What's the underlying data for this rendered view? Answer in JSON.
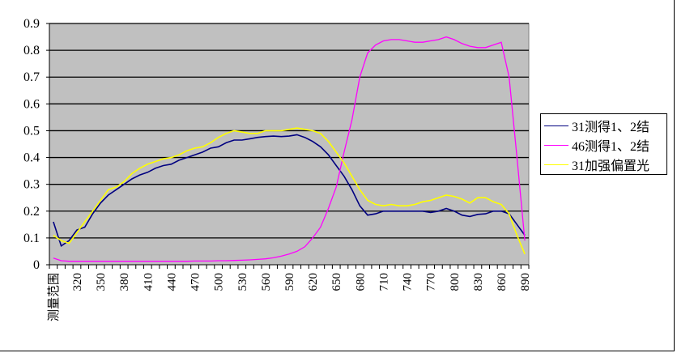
{
  "chart_data": {
    "type": "line",
    "title": "",
    "xlabel": "",
    "ylabel": "",
    "ylim": [
      0,
      0.9
    ],
    "yticks": [
      "0",
      "0.1",
      "0.2",
      "0.3",
      "0.4",
      "0.5",
      "0.6",
      "0.7",
      "0.8",
      "0.9"
    ],
    "grid": true,
    "legend_position": "right",
    "plot_background": "#c0c0c0",
    "categories": [
      "测量范围",
      "300",
      "310",
      "320",
      "330",
      "340",
      "350",
      "360",
      "370",
      "380",
      "390",
      "400",
      "410",
      "420",
      "430",
      "440",
      "450",
      "460",
      "470",
      "480",
      "490",
      "500",
      "510",
      "520",
      "530",
      "540",
      "550",
      "560",
      "570",
      "580",
      "590",
      "600",
      "610",
      "620",
      "630",
      "640",
      "650",
      "660",
      "670",
      "680",
      "690",
      "700",
      "710",
      "720",
      "730",
      "740",
      "750",
      "760",
      "770",
      "780",
      "790",
      "800",
      "810",
      "820",
      "830",
      "840",
      "850",
      "860",
      "870",
      "880",
      "890"
    ],
    "xtick_labels_shown": [
      "测量范围",
      "320",
      "350",
      "380",
      "410",
      "440",
      "470",
      "500",
      "530",
      "560",
      "590",
      "620",
      "650",
      "680",
      "710",
      "740",
      "770",
      "800",
      "830",
      "860",
      "890"
    ],
    "series": [
      {
        "name": "31测得1、2结",
        "color": "#000080",
        "values": [
          0.16,
          0.07,
          0.09,
          0.13,
          0.14,
          0.19,
          0.23,
          0.26,
          0.28,
          0.3,
          0.32,
          0.335,
          0.345,
          0.36,
          0.37,
          0.375,
          0.39,
          0.4,
          0.41,
          0.42,
          0.435,
          0.44,
          0.455,
          0.465,
          0.465,
          0.47,
          0.475,
          0.478,
          0.48,
          0.478,
          0.48,
          0.485,
          0.475,
          0.46,
          0.44,
          0.41,
          0.37,
          0.33,
          0.28,
          0.22,
          0.185,
          0.19,
          0.2,
          0.2,
          0.2,
          0.2,
          0.2,
          0.2,
          0.195,
          0.2,
          0.21,
          0.2,
          0.185,
          0.18,
          0.188,
          0.19,
          0.2,
          0.2,
          0.19,
          0.15,
          0.11
        ]
      },
      {
        "name": "46测得1、2结",
        "color": "#ff00ff",
        "values": [
          0.025,
          0.015,
          0.013,
          0.013,
          0.013,
          0.013,
          0.013,
          0.013,
          0.013,
          0.013,
          0.013,
          0.013,
          0.013,
          0.013,
          0.013,
          0.013,
          0.013,
          0.013,
          0.014,
          0.014,
          0.014,
          0.015,
          0.015,
          0.016,
          0.017,
          0.018,
          0.02,
          0.022,
          0.026,
          0.032,
          0.04,
          0.05,
          0.067,
          0.1,
          0.14,
          0.21,
          0.29,
          0.42,
          0.54,
          0.7,
          0.79,
          0.82,
          0.835,
          0.84,
          0.84,
          0.835,
          0.83,
          0.83,
          0.835,
          0.84,
          0.85,
          0.84,
          0.825,
          0.815,
          0.81,
          0.81,
          0.82,
          0.83,
          0.7,
          0.4,
          0.09
        ]
      },
      {
        "name": "31加强偏置光",
        "color": "#ffff00",
        "values": [
          0.11,
          0.09,
          0.08,
          0.12,
          0.16,
          0.2,
          0.24,
          0.28,
          0.29,
          0.31,
          0.34,
          0.36,
          0.375,
          0.385,
          0.395,
          0.4,
          0.41,
          0.425,
          0.435,
          0.44,
          0.455,
          0.475,
          0.49,
          0.5,
          0.495,
          0.49,
          0.49,
          0.5,
          0.5,
          0.5,
          0.505,
          0.51,
          0.505,
          0.5,
          0.49,
          0.46,
          0.42,
          0.38,
          0.33,
          0.28,
          0.24,
          0.225,
          0.22,
          0.225,
          0.22,
          0.22,
          0.225,
          0.235,
          0.24,
          0.25,
          0.26,
          0.255,
          0.245,
          0.23,
          0.25,
          0.25,
          0.235,
          0.225,
          0.19,
          0.11,
          0.04
        ]
      }
    ]
  }
}
